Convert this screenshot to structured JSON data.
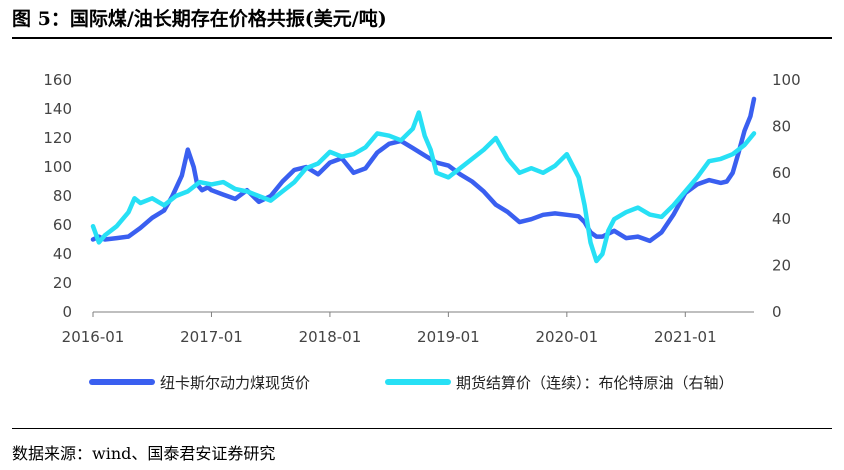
{
  "figure": {
    "title": "图  5：国际煤/油长期存在价格共振(美元/吨)",
    "source": "数据来源：wind、国泰君安证券研究"
  },
  "chart_data": {
    "type": "line",
    "title": "",
    "xlabel": "",
    "ylabel": "",
    "ylim": [
      0,
      160
    ],
    "y2lim": [
      0,
      100
    ],
    "yticks": [
      0,
      20,
      40,
      60,
      80,
      100,
      120,
      140,
      160
    ],
    "y2ticks": [
      0,
      20,
      40,
      60,
      80,
      100
    ],
    "xlim": [
      2016.0,
      2021.58
    ],
    "xticks": [
      {
        "label": "2016-01",
        "x": 2016.0
      },
      {
        "label": "2017-01",
        "x": 2017.0
      },
      {
        "label": "2018-01",
        "x": 2018.0
      },
      {
        "label": "2019-01",
        "x": 2019.0
      },
      {
        "label": "2020-01",
        "x": 2020.0
      },
      {
        "label": "2021-01",
        "x": 2021.0
      }
    ],
    "legend_position": "bottom",
    "series": [
      {
        "name": "纽卡斯尔动力煤现货价",
        "axis": "left",
        "color": "#3a5ff0",
        "x": [
          2016.0,
          2016.05,
          2016.1,
          2016.2,
          2016.3,
          2016.4,
          2016.5,
          2016.6,
          2016.67,
          2016.75,
          2016.8,
          2016.85,
          2016.88,
          2016.92,
          2016.97,
          2017.0,
          2017.1,
          2017.2,
          2017.3,
          2017.4,
          2017.5,
          2017.6,
          2017.7,
          2017.8,
          2017.9,
          2018.0,
          2018.1,
          2018.2,
          2018.3,
          2018.4,
          2018.5,
          2018.6,
          2018.7,
          2018.8,
          2018.9,
          2019.0,
          2019.1,
          2019.2,
          2019.3,
          2019.4,
          2019.5,
          2019.6,
          2019.7,
          2019.8,
          2019.9,
          2020.0,
          2020.1,
          2020.15,
          2020.2,
          2020.25,
          2020.3,
          2020.4,
          2020.5,
          2020.6,
          2020.7,
          2020.8,
          2020.9,
          2021.0,
          2021.1,
          2021.2,
          2021.3,
          2021.35,
          2021.4,
          2021.45,
          2021.5,
          2021.55,
          2021.58
        ],
        "y": [
          50,
          52,
          50,
          51,
          52,
          58,
          65,
          70,
          80,
          94,
          112,
          100,
          88,
          84,
          86,
          84,
          81,
          78,
          84,
          76,
          80,
          90,
          98,
          100,
          95,
          103,
          106,
          96,
          99,
          110,
          116,
          118,
          113,
          108,
          103,
          101,
          95,
          90,
          83,
          74,
          69,
          62,
          64,
          67,
          68,
          67,
          66,
          62,
          55,
          52,
          52,
          56,
          51,
          52,
          49,
          55,
          67,
          82,
          88,
          91,
          89,
          90,
          96,
          110,
          125,
          135,
          147
        ]
      },
      {
        "name": "期货结算价（连续）：布伦特原油（右轴）",
        "axis": "right",
        "color": "#27e0f5",
        "x": [
          2016.0,
          2016.05,
          2016.1,
          2016.2,
          2016.3,
          2016.35,
          2016.4,
          2016.5,
          2016.6,
          2016.7,
          2016.8,
          2016.9,
          2017.0,
          2017.1,
          2017.2,
          2017.3,
          2017.4,
          2017.5,
          2017.6,
          2017.7,
          2017.8,
          2017.9,
          2018.0,
          2018.1,
          2018.2,
          2018.3,
          2018.4,
          2018.5,
          2018.6,
          2018.7,
          2018.75,
          2018.8,
          2018.85,
          2018.9,
          2019.0,
          2019.1,
          2019.2,
          2019.3,
          2019.4,
          2019.5,
          2019.6,
          2019.7,
          2019.8,
          2019.9,
          2020.0,
          2020.1,
          2020.15,
          2020.2,
          2020.25,
          2020.3,
          2020.35,
          2020.4,
          2020.5,
          2020.6,
          2020.7,
          2020.8,
          2020.9,
          2021.0,
          2021.1,
          2021.2,
          2021.3,
          2021.4,
          2021.5,
          2021.58
        ],
        "y": [
          37,
          30,
          33,
          37,
          43,
          49,
          47,
          49,
          46,
          50,
          52,
          56,
          55,
          56,
          53,
          52,
          50,
          48,
          52,
          56,
          62,
          64,
          69,
          67,
          68,
          71,
          77,
          76,
          74,
          79,
          86,
          76,
          70,
          60,
          58,
          62,
          66,
          70,
          75,
          66,
          60,
          62,
          60,
          63,
          68,
          58,
          46,
          30,
          22,
          25,
          35,
          40,
          43,
          45,
          42,
          41,
          46,
          52,
          58,
          65,
          66,
          68,
          72,
          77
        ]
      }
    ]
  }
}
